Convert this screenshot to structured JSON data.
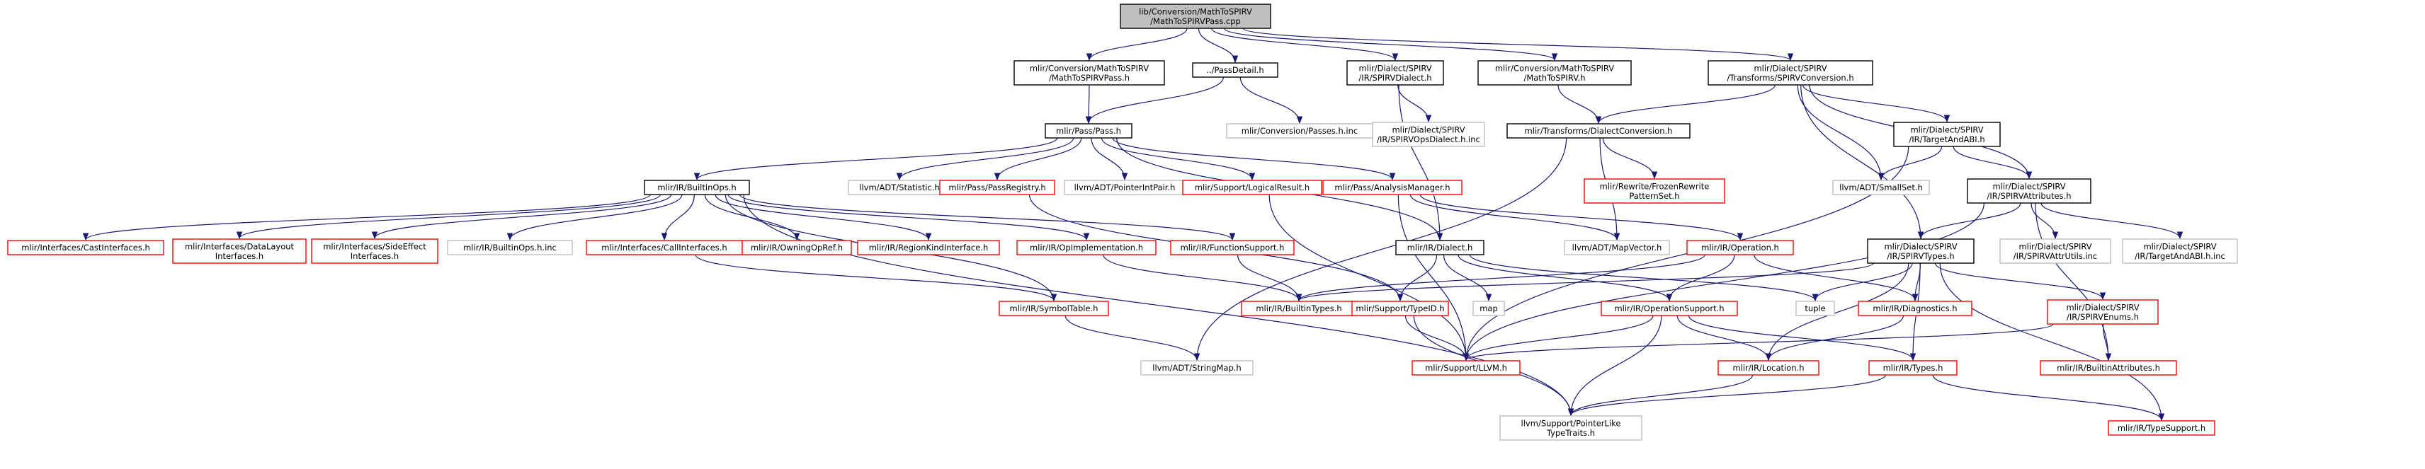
{
  "colors": {
    "edge": "#191970",
    "focus_fill": "#bfbfbf",
    "plain_border": "#000000",
    "red_border": "#ff0000",
    "gray_border": "#bfbfbf"
  },
  "nodes": [
    {
      "id": "root",
      "kind": "focus",
      "lines": [
        "lib/Conversion/MathToSPIRV",
        "/MathToSPIRVPass.cpp"
      ]
    },
    {
      "id": "convpass",
      "kind": "plain",
      "lines": [
        "mlir/Conversion/MathToSPIRV",
        "/MathToSPIRVPass.h"
      ]
    },
    {
      "id": "passdetail",
      "kind": "plain",
      "lines": [
        "../PassDetail.h"
      ]
    },
    {
      "id": "spirvdialect",
      "kind": "plain",
      "lines": [
        "mlir/Dialect/SPIRV",
        "/IR/SPIRVDialect.h"
      ]
    },
    {
      "id": "mathtospirv",
      "kind": "plain",
      "lines": [
        "mlir/Conversion/MathToSPIRV",
        "/MathToSPIRV.h"
      ]
    },
    {
      "id": "spirvconversion",
      "kind": "plain",
      "lines": [
        "mlir/Dialect/SPIRV",
        "/Transforms/SPIRVConversion.h"
      ]
    },
    {
      "id": "passeshinc",
      "kind": "gray",
      "lines": [
        "mlir/Conversion/Passes.h.inc"
      ]
    },
    {
      "id": "spirvopsdialectinc",
      "kind": "gray",
      "lines": [
        "mlir/Dialect/SPIRV",
        "/IR/SPIRVOpsDialect.h.inc"
      ]
    },
    {
      "id": "pass",
      "kind": "plain",
      "lines": [
        "mlir/Pass/Pass.h"
      ]
    },
    {
      "id": "dialectconversion",
      "kind": "plain",
      "lines": [
        "mlir/Transforms/DialectConversion.h"
      ]
    },
    {
      "id": "targetandabi",
      "kind": "plain",
      "lines": [
        "mlir/Dialect/SPIRV",
        "/IR/TargetAndABI.h"
      ]
    },
    {
      "id": "builtinops",
      "kind": "plain",
      "lines": [
        "mlir/IR/BuiltinOps.h"
      ]
    },
    {
      "id": "statistic",
      "kind": "gray",
      "lines": [
        "llvm/ADT/Statistic.h"
      ]
    },
    {
      "id": "passregistry",
      "kind": "red",
      "lines": [
        "mlir/Pass/PassRegistry.h"
      ]
    },
    {
      "id": "pointerintpair",
      "kind": "gray",
      "lines": [
        "llvm/ADT/PointerIntPair.h"
      ]
    },
    {
      "id": "logicalresult",
      "kind": "red",
      "lines": [
        "mlir/Support/LogicalResult.h"
      ]
    },
    {
      "id": "analysismanager",
      "kind": "red",
      "lines": [
        "mlir/Pass/AnalysisManager.h"
      ]
    },
    {
      "id": "frozenrewrite",
      "kind": "red",
      "lines": [
        "mlir/Rewrite/FrozenRewrite",
        "PatternSet.h"
      ]
    },
    {
      "id": "smallset",
      "kind": "gray",
      "lines": [
        "llvm/ADT/SmallSet.h"
      ]
    },
    {
      "id": "spirvattributes",
      "kind": "plain",
      "lines": [
        "mlir/Dialect/SPIRV",
        "/IR/SPIRVAttributes.h"
      ]
    },
    {
      "id": "castinterfaces",
      "kind": "red",
      "lines": [
        "mlir/Interfaces/CastInterfaces.h"
      ]
    },
    {
      "id": "datalayout",
      "kind": "red",
      "lines": [
        "mlir/Interfaces/DataLayout",
        "Interfaces.h"
      ]
    },
    {
      "id": "sideeffect",
      "kind": "red",
      "lines": [
        "mlir/Interfaces/SideEffect",
        "Interfaces.h"
      ]
    },
    {
      "id": "builtinopsinc",
      "kind": "gray",
      "lines": [
        "mlir/IR/BuiltinOps.h.inc"
      ]
    },
    {
      "id": "callinterfaces",
      "kind": "red",
      "lines": [
        "mlir/Interfaces/CallInterfaces.h"
      ]
    },
    {
      "id": "owningopref",
      "kind": "red",
      "lines": [
        "mlir/IR/OwningOpRef.h"
      ]
    },
    {
      "id": "regionkind",
      "kind": "red",
      "lines": [
        "mlir/IR/RegionKindInterface.h"
      ]
    },
    {
      "id": "opimplementation",
      "kind": "red",
      "lines": [
        "mlir/IR/OpImplementation.h"
      ]
    },
    {
      "id": "functionsupport",
      "kind": "red",
      "lines": [
        "mlir/IR/FunctionSupport.h"
      ]
    },
    {
      "id": "dialect",
      "kind": "plain",
      "lines": [
        "mlir/IR/Dialect.h"
      ]
    },
    {
      "id": "mapvector",
      "kind": "gray",
      "lines": [
        "llvm/ADT/MapVector.h"
      ]
    },
    {
      "id": "operation",
      "kind": "red",
      "lines": [
        "mlir/IR/Operation.h"
      ]
    },
    {
      "id": "spirvtypes",
      "kind": "plain",
      "lines": [
        "mlir/Dialect/SPIRV",
        "/IR/SPIRVTypes.h"
      ]
    },
    {
      "id": "spirvattrutils",
      "kind": "gray",
      "lines": [
        "mlir/Dialect/SPIRV",
        "/IR/SPIRVAttrUtils.inc"
      ]
    },
    {
      "id": "targetandabiinc",
      "kind": "gray",
      "lines": [
        "mlir/Dialect/SPIRV",
        "/IR/TargetAndABI.h.inc"
      ]
    },
    {
      "id": "symboltable",
      "kind": "red",
      "lines": [
        "mlir/IR/SymbolTable.h"
      ]
    },
    {
      "id": "builtintypes",
      "kind": "red",
      "lines": [
        "mlir/IR/BuiltinTypes.h"
      ]
    },
    {
      "id": "typeid",
      "kind": "red",
      "lines": [
        "mlir/Support/TypeID.h"
      ]
    },
    {
      "id": "map",
      "kind": "gray",
      "lines": [
        "map"
      ]
    },
    {
      "id": "operationsupport",
      "kind": "red",
      "lines": [
        "mlir/IR/OperationSupport.h"
      ]
    },
    {
      "id": "tuple",
      "kind": "gray",
      "lines": [
        "tuple"
      ]
    },
    {
      "id": "diagnostics",
      "kind": "red",
      "lines": [
        "mlir/IR/Diagnostics.h"
      ]
    },
    {
      "id": "spirvenums",
      "kind": "red",
      "lines": [
        "mlir/Dialect/SPIRV",
        "/IR/SPIRVEnums.h"
      ]
    },
    {
      "id": "stringmap",
      "kind": "gray",
      "lines": [
        "llvm/ADT/StringMap.h"
      ]
    },
    {
      "id": "llvm",
      "kind": "red",
      "lines": [
        "mlir/Support/LLVM.h"
      ]
    },
    {
      "id": "location",
      "kind": "red",
      "lines": [
        "mlir/IR/Location.h"
      ]
    },
    {
      "id": "types",
      "kind": "red",
      "lines": [
        "mlir/IR/Types.h"
      ]
    },
    {
      "id": "builtinattributes",
      "kind": "red",
      "lines": [
        "mlir/IR/BuiltinAttributes.h"
      ]
    },
    {
      "id": "pointerlike",
      "kind": "gray",
      "lines": [
        "llvm/Support/PointerLike",
        "TypeTraits.h"
      ]
    },
    {
      "id": "typesupport",
      "kind": "red",
      "lines": [
        "mlir/IR/TypeSupport.h"
      ]
    }
  ],
  "edges": [
    [
      "root",
      "convpass"
    ],
    [
      "root",
      "passdetail"
    ],
    [
      "root",
      "spirvdialect"
    ],
    [
      "root",
      "mathtospirv"
    ],
    [
      "root",
      "spirvconversion"
    ],
    [
      "convpass",
      "pass"
    ],
    [
      "passdetail",
      "pass"
    ],
    [
      "passdetail",
      "passeshinc"
    ],
    [
      "spirvdialect",
      "spirvopsdialectinc"
    ],
    [
      "spirvdialect",
      "dialect"
    ],
    [
      "mathtospirv",
      "dialectconversion"
    ],
    [
      "spirvconversion",
      "dialectconversion"
    ],
    [
      "spirvconversion",
      "targetandabi"
    ],
    [
      "spirvconversion",
      "smallset"
    ],
    [
      "spirvconversion",
      "spirvattributes"
    ],
    [
      "spirvconversion",
      "spirvtypes"
    ],
    [
      "pass",
      "builtinops"
    ],
    [
      "pass",
      "statistic"
    ],
    [
      "pass",
      "passregistry"
    ],
    [
      "pass",
      "pointerintpair"
    ],
    [
      "pass",
      "logicalresult"
    ],
    [
      "pass",
      "analysismanager"
    ],
    [
      "pass",
      "dialect"
    ],
    [
      "dialectconversion",
      "frozenrewrite"
    ],
    [
      "dialectconversion",
      "mapvector"
    ],
    [
      "dialectconversion",
      "stringmap"
    ],
    [
      "targetandabi",
      "smallset"
    ],
    [
      "targetandabi",
      "spirvattributes"
    ],
    [
      "targetandabi",
      "llvm"
    ],
    [
      "spirvattributes",
      "spirvtypes"
    ],
    [
      "spirvattributes",
      "spirvattrutils"
    ],
    [
      "spirvattributes",
      "targetandabiinc"
    ],
    [
      "spirvattributes",
      "builtinattributes"
    ],
    [
      "spirvattributes",
      "llvm"
    ],
    [
      "builtinops",
      "castinterfaces"
    ],
    [
      "builtinops",
      "datalayout"
    ],
    [
      "builtinops",
      "sideeffect"
    ],
    [
      "builtinops",
      "builtinopsinc"
    ],
    [
      "builtinops",
      "callinterfaces"
    ],
    [
      "builtinops",
      "owningopref"
    ],
    [
      "builtinops",
      "regionkind"
    ],
    [
      "builtinops",
      "opimplementation"
    ],
    [
      "builtinops",
      "functionsupport"
    ],
    [
      "builtinops",
      "symboltable"
    ],
    [
      "builtinops",
      "pointerlike"
    ],
    [
      "passregistry",
      "typeid"
    ],
    [
      "logicalresult",
      "llvm"
    ],
    [
      "analysismanager",
      "operation"
    ],
    [
      "analysismanager",
      "mapvector"
    ],
    [
      "analysismanager",
      "llvm"
    ],
    [
      "callinterfaces",
      "symboltable"
    ],
    [
      "opimplementation",
      "builtintypes"
    ],
    [
      "functionsupport",
      "builtintypes"
    ],
    [
      "dialect",
      "typeid"
    ],
    [
      "dialect",
      "map"
    ],
    [
      "dialect",
      "operationsupport"
    ],
    [
      "dialect",
      "tuple"
    ],
    [
      "operation",
      "operationsupport"
    ],
    [
      "operation",
      "diagnostics"
    ],
    [
      "operation",
      "builtintypes"
    ],
    [
      "spirvtypes",
      "builtintypes"
    ],
    [
      "spirvtypes",
      "tuple"
    ],
    [
      "spirvtypes",
      "diagnostics"
    ],
    [
      "spirvtypes",
      "spirvenums"
    ],
    [
      "spirvtypes",
      "location"
    ],
    [
      "spirvtypes",
      "types"
    ],
    [
      "spirvtypes",
      "typesupport"
    ],
    [
      "symboltable",
      "stringmap"
    ],
    [
      "typeid",
      "llvm"
    ],
    [
      "typeid",
      "pointerlike"
    ],
    [
      "operationsupport",
      "llvm"
    ],
    [
      "operationsupport",
      "location"
    ],
    [
      "operationsupport",
      "types"
    ],
    [
      "operationsupport",
      "pointerlike"
    ],
    [
      "diagnostics",
      "location"
    ],
    [
      "spirvenums",
      "llvm"
    ],
    [
      "spirvenums",
      "builtinattributes"
    ],
    [
      "location",
      "pointerlike"
    ],
    [
      "types",
      "typesupport"
    ],
    [
      "types",
      "pointerlike"
    ]
  ]
}
